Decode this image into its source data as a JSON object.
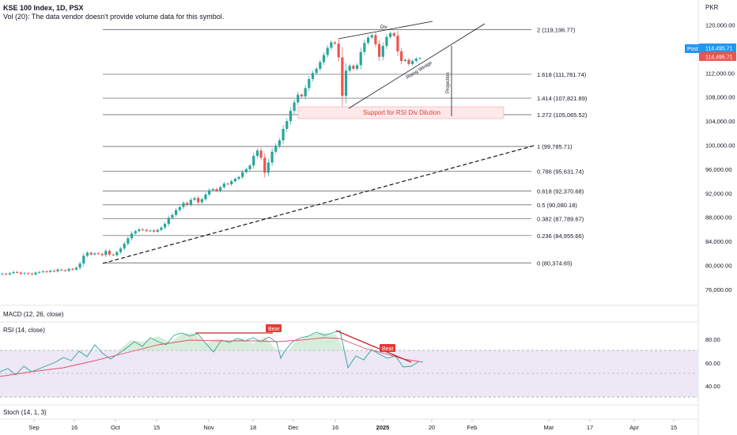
{
  "header": {
    "symbol": "KSE 100 Index, 1D, PSX",
    "volume_note": "Vol (20): The data vendor doesn't provide volume data for this symbol."
  },
  "currency": "PKR",
  "colors": {
    "up": "#26a69a",
    "down": "#ef5350",
    "fib_line": "#555555",
    "rsi_line": "#26a69a",
    "rsi_ma": "#e0506a",
    "bear_label": "#e53935",
    "price_badge": "#ef5350",
    "post_badge": "#2196f3",
    "rsi_band": "#ede7f6",
    "support_zone": "#fde8ea"
  },
  "chart_data": {
    "type": "candlestick",
    "x_labels": [
      "Sep",
      "16",
      "Oct",
      "15",
      "Nov",
      "18",
      "Dec",
      "16",
      "2025",
      "20",
      "Feb",
      "Mar",
      "17",
      "Apr",
      "15"
    ],
    "y_ticks": [
      "120,000.00",
      "116,000.00",
      "112,000.00",
      "108,000.00",
      "104,000.00",
      "100,000.00",
      "96,000.00",
      "92,000.00",
      "88,000.00",
      "84,000.00",
      "80,000.00",
      "76,000.00"
    ],
    "y_range": [
      73000,
      122000
    ],
    "last_price": "114,495.71",
    "post_label": "Post",
    "post_price": "114,495.71",
    "fib_levels": [
      {
        "value": 119196.77,
        "label": "2 (119,196.77)"
      },
      {
        "value": 111781.74,
        "label": "1.618 (111,781.74)"
      },
      {
        "value": 107821.89,
        "label": "1.414 (107,821.89)"
      },
      {
        "value": 105065.52,
        "label": "1.272 (105,065.52)"
      },
      {
        "value": 99785.71,
        "label": "1 (99,785.71)"
      },
      {
        "value": 95631.74,
        "label": "0.786 (95,631.74)"
      },
      {
        "value": 92370.68,
        "label": "0.618 (92,370.68)"
      },
      {
        "value": 90080.18,
        "label": "0.5 (90,080.18)"
      },
      {
        "value": 87789.67,
        "label": "0.382 (87,789.67)"
      },
      {
        "value": 84955.66,
        "label": "0.236 (84,955.66)"
      },
      {
        "value": 80374.65,
        "label": "0 (80,374.65)"
      }
    ],
    "closes": [
      78600,
      78500,
      78700,
      78900,
      78800,
      78600,
      78700,
      78600,
      78500,
      78800,
      78900,
      79000,
      78900,
      79100,
      79000,
      79300,
      79200,
      79100,
      79400,
      79300,
      79600,
      80300,
      81600,
      82100,
      81800,
      82000,
      81900,
      81700,
      82400,
      81800,
      81700,
      82200,
      82800,
      83600,
      84500,
      85300,
      85700,
      86000,
      85900,
      85700,
      85800,
      85600,
      85900,
      86300,
      86900,
      87900,
      88400,
      89200,
      89700,
      90400,
      90100,
      90900,
      91200,
      90500,
      91000,
      91800,
      92500,
      92700,
      92400,
      93000,
      93600,
      93500,
      94000,
      94400,
      94700,
      95500,
      96000,
      96600,
      98200,
      99100,
      97900,
      95400,
      97100,
      98900,
      99900,
      100800,
      102700,
      104000,
      105700,
      107100,
      108400,
      108100,
      109500,
      111000,
      112000,
      112700,
      113800,
      115000,
      116200,
      117100,
      116900,
      114600,
      108200,
      112400,
      113200,
      112700,
      113300,
      115500,
      117000,
      117900,
      118300,
      116800,
      114700,
      116500,
      118000,
      118600,
      118200,
      115600,
      114000,
      114200,
      113500,
      114000,
      114400,
      114495
    ]
  },
  "annotations": {
    "rising_wedge": "Rising Wedge",
    "projection": "Projection",
    "support_text": "Support for RSI Div Dilution",
    "div": "Div"
  },
  "panes": {
    "macd_label": "MACD (12, 26, close)",
    "rsi_label": "RSI (14, close)",
    "stoch_label": "Stoch (14, 1, 3)",
    "rsi_ticks": [
      "80.00",
      "60.00",
      "40.00"
    ],
    "bear_label": "Bear"
  }
}
